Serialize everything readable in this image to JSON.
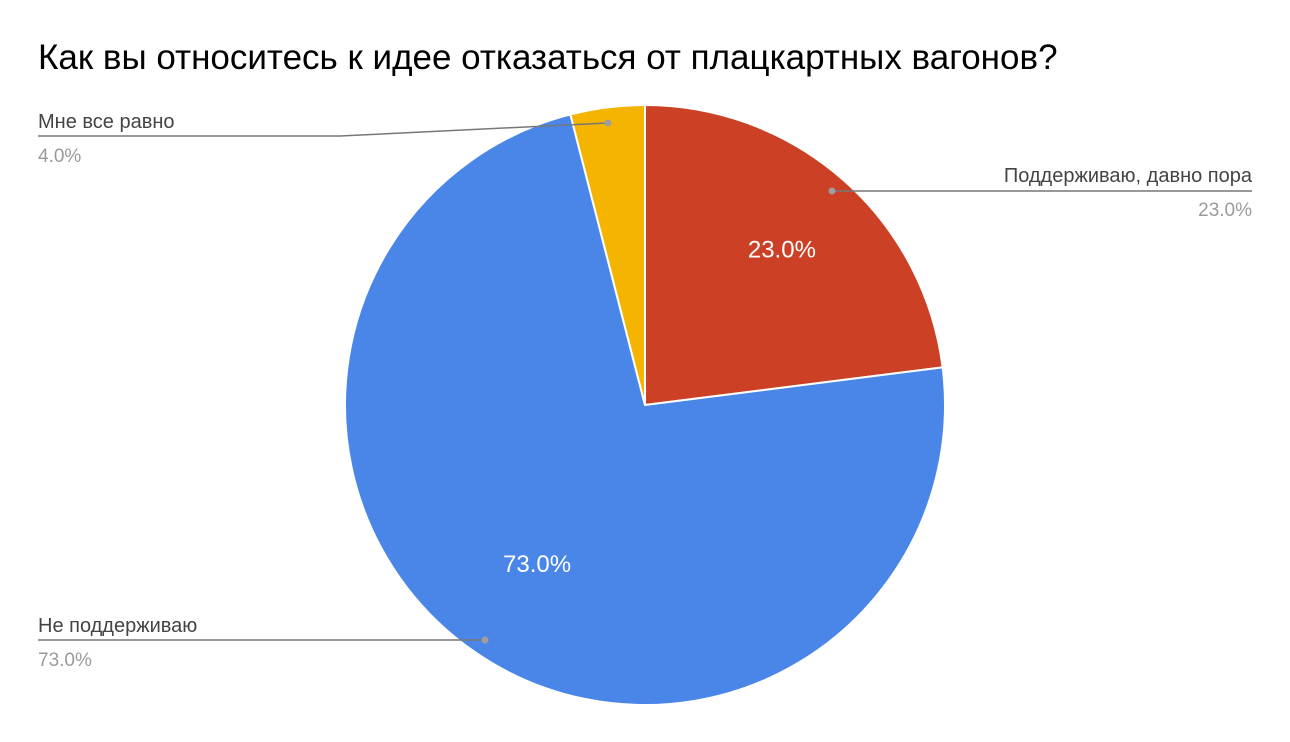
{
  "chart_data": {
    "type": "pie",
    "title": "Как вы относитесь к идее отказаться от плацкартных вагонов?",
    "slices": [
      {
        "label": "Поддерживаю, давно пора",
        "value": 23.0,
        "display": "23.0%",
        "color": "#CC4125",
        "show_inside": true
      },
      {
        "label": "Не поддерживаю",
        "value": 73.0,
        "display": "73.0%",
        "color": "#4A86E8",
        "show_inside": true
      },
      {
        "label": "Мне все равно",
        "value": 4.0,
        "display": "4.0%",
        "color": "#F4B400",
        "show_inside": false
      }
    ],
    "start_angle": "12 o'clock",
    "direction": "clockwise",
    "legend": "callout labels"
  }
}
